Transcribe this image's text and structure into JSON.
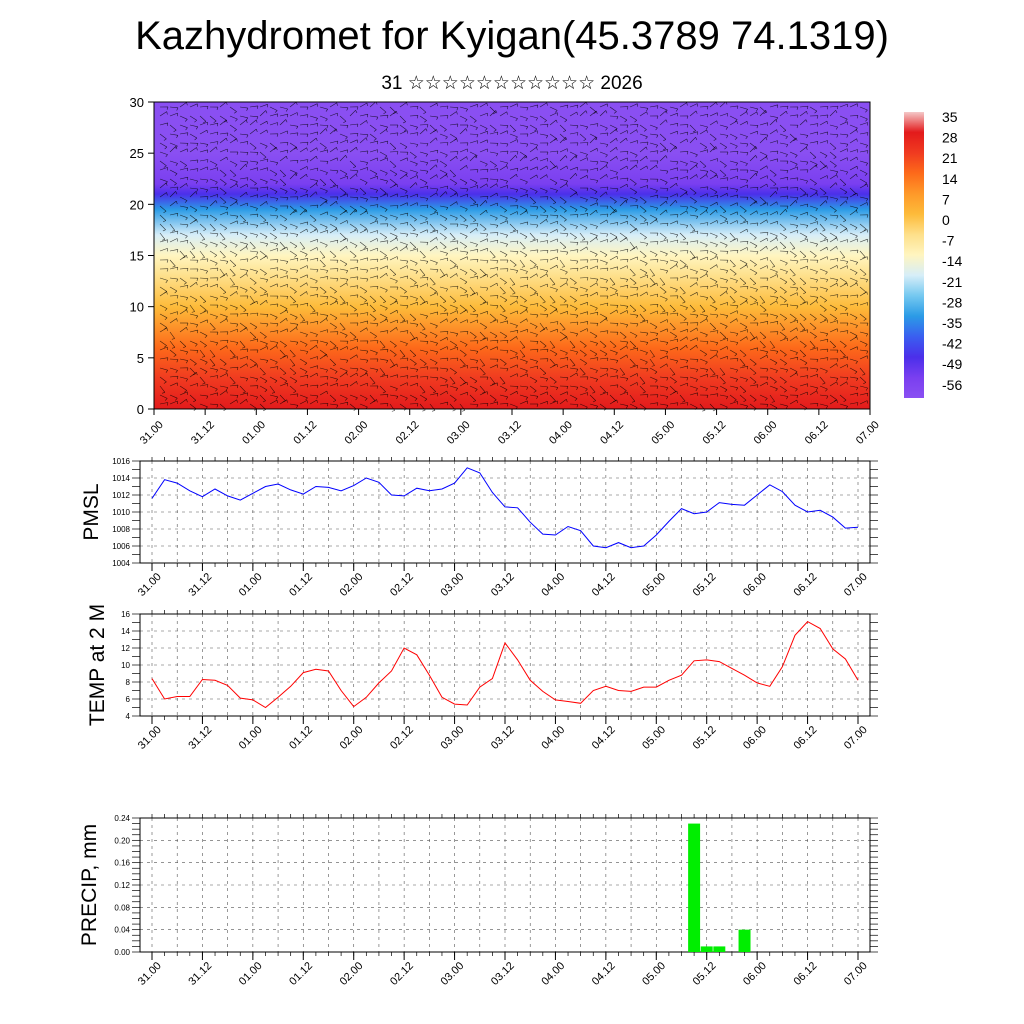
{
  "title": "Kazhydromet for Kyigan(45.3789 74.1319)",
  "subtitle": "31 ☆☆☆☆☆☆☆☆☆☆☆ 2026",
  "x_ticks": [
    "31.00",
    "31.12",
    "01.00",
    "01.12",
    "02.00",
    "02.12",
    "03.00",
    "03.12",
    "04.00",
    "04.12",
    "05.00",
    "05.12",
    "06.00",
    "06.12",
    "07.00"
  ],
  "chart_data": [
    {
      "type": "heatmap",
      "name": "cross-section",
      "ylabel": "",
      "ylim": [
        0,
        30
      ],
      "y_ticks": [
        0,
        5,
        10,
        15,
        20,
        25,
        30
      ],
      "colorbar_labels": [
        "35",
        "28",
        "21",
        "14",
        "7",
        "0",
        "-7",
        "-14",
        "-21",
        "-28",
        "-35",
        "-42",
        "-49",
        "-56"
      ],
      "colorbar_colors": [
        "#f4c8c8",
        "#e31a1c",
        "#f03b20",
        "#fd6a1a",
        "#fe9929",
        "#fdbb3a",
        "#fee08b",
        "#fff5c0",
        "#d7eef8",
        "#74c8f0",
        "#2b9be6",
        "#3a5ef0",
        "#4b2fea",
        "#7a3ff0",
        "#8a4ff2"
      ],
      "temperature_profile": [
        {
          "height": 0,
          "value": 28
        },
        {
          "height": 3,
          "value": 22
        },
        {
          "height": 6,
          "value": 14
        },
        {
          "height": 10,
          "value": 5
        },
        {
          "height": 13,
          "value": -3
        },
        {
          "height": 15,
          "value": -10
        },
        {
          "height": 17,
          "value": -20
        },
        {
          "height": 19.5,
          "value": -33
        },
        {
          "height": 21,
          "value": -45
        },
        {
          "height": 22,
          "value": -54
        },
        {
          "height": 25,
          "value": -58
        },
        {
          "height": 30,
          "value": -60
        }
      ]
    },
    {
      "type": "line",
      "name": "PMSL",
      "ylabel": "PMSL",
      "ylim": [
        1004,
        1016
      ],
      "y_ticks": [
        1004,
        1006,
        1008,
        1010,
        1012,
        1014,
        1016
      ],
      "color": "#0000ff",
      "values": [
        1011.6,
        1013.8,
        1013.4,
        1012.5,
        1011.8,
        1012.7,
        1011.9,
        1011.4,
        1012.2,
        1013.0,
        1013.3,
        1012.6,
        1012.1,
        1013.0,
        1012.9,
        1012.5,
        1013.1,
        1014.0,
        1013.5,
        1012.0,
        1011.9,
        1012.8,
        1012.5,
        1012.7,
        1013.4,
        1015.2,
        1014.6,
        1012.3,
        1010.6,
        1010.5,
        1008.8,
        1007.4,
        1007.3,
        1008.3,
        1007.8,
        1006.0,
        1005.8,
        1006.4,
        1005.8,
        1006.0,
        1007.3,
        1008.9,
        1010.4,
        1009.8,
        1010.0,
        1011.1,
        1010.9,
        1010.8,
        1012.0,
        1013.2,
        1012.4,
        1010.8,
        1010.0,
        1010.2,
        1009.4,
        1008.1,
        1008.2
      ]
    },
    {
      "type": "line",
      "name": "TEMP at 2 M",
      "ylabel": "TEMP at 2 M",
      "ylim": [
        4,
        16
      ],
      "y_ticks": [
        4,
        6,
        8,
        10,
        12,
        14,
        16
      ],
      "color": "#ff0000",
      "values": [
        8.4,
        6.0,
        6.3,
        6.3,
        8.3,
        8.2,
        7.6,
        6.1,
        5.9,
        5.0,
        6.2,
        7.5,
        9.1,
        9.5,
        9.3,
        7.0,
        5.1,
        6.2,
        7.9,
        9.3,
        12.0,
        11.2,
        8.8,
        6.2,
        5.4,
        5.3,
        7.4,
        8.4,
        12.6,
        10.6,
        8.2,
        6.9,
        5.9,
        5.7,
        5.5,
        7.0,
        7.5,
        7.0,
        6.9,
        7.4,
        7.4,
        8.2,
        8.8,
        10.5,
        10.6,
        10.4,
        9.6,
        8.8,
        7.9,
        7.5,
        9.8,
        13.5,
        15.1,
        14.3,
        11.9,
        10.7,
        8.2
      ]
    },
    {
      "type": "bar",
      "name": "PRECIP, mm",
      "ylabel": "PRECIP, mm",
      "ylim": [
        0,
        0.24
      ],
      "y_ticks": [
        "0.00",
        "0.04",
        "0.08",
        "0.12",
        "0.16",
        "0.20",
        "0.24"
      ],
      "color": "#00ee00",
      "bars": [
        {
          "x": 43,
          "value": 0.23
        },
        {
          "x": 44,
          "value": 0.01
        },
        {
          "x": 45,
          "value": 0.01
        },
        {
          "x": 47,
          "value": 0.04
        }
      ]
    }
  ]
}
